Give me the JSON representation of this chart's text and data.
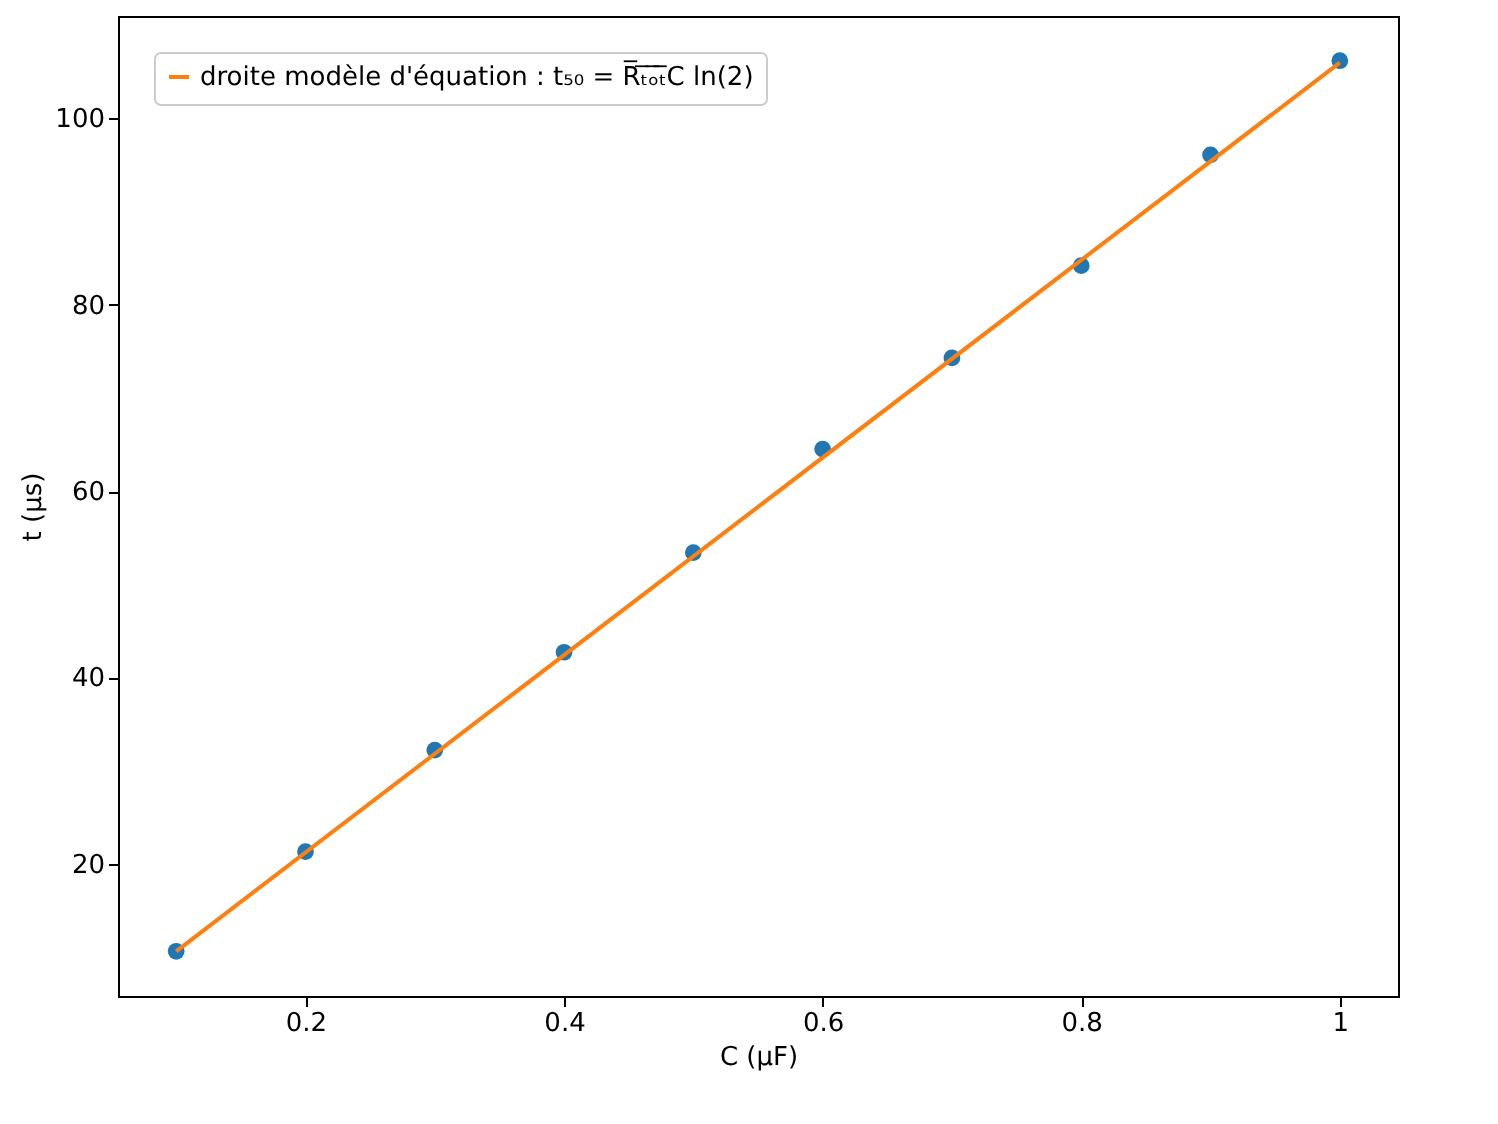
{
  "chart_data": {
    "type": "scatter",
    "xlabel": "C (μF)",
    "ylabel": "t (μs)",
    "x": [
      0.1,
      0.2,
      0.3,
      0.4,
      0.5,
      0.6,
      0.7,
      0.8,
      0.9,
      1.0
    ],
    "series": [
      {
        "color": "#1f77b4",
        "marker": "circle",
        "values": [
          10.6,
          21.3,
          32.2,
          42.7,
          53.4,
          64.5,
          74.3,
          84.2,
          96.1,
          106.2
        ]
      },
      {
        "type": "line",
        "name": "droite modèle d'équation : t₅₀ = R̅ₜ̅ₒ̅ₜ̅C ln(2)",
        "color": "#ff7f0e",
        "x": [
          0.1,
          1.0
        ],
        "values": [
          10.6,
          106.0
        ]
      }
    ],
    "xlim": [
      0.055,
      1.045
    ],
    "ylim": [
      5.8,
      111.0
    ],
    "xticks": [
      0.2,
      0.4,
      0.6,
      0.8,
      1.0
    ],
    "yticks": [
      20,
      40,
      60,
      80,
      100
    ],
    "grid": false,
    "legend": "top left"
  }
}
